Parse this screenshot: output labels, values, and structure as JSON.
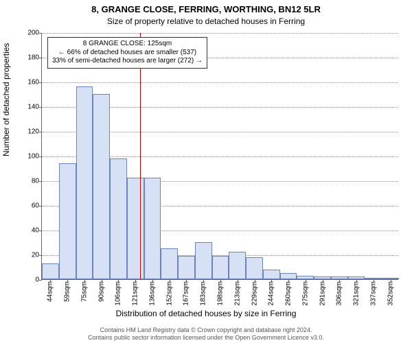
{
  "title": "8, GRANGE CLOSE, FERRING, WORTHING, BN12 5LR",
  "subtitle": "Size of property relative to detached houses in Ferring",
  "ylabel": "Number of detached properties",
  "xlabel": "Distribution of detached houses by size in Ferring",
  "footer_line1": "Contains HM Land Registry data © Crown copyright and database right 2024.",
  "footer_line2": "Contains public sector information licensed under the Open Government Licence v3.0.",
  "chart": {
    "type": "histogram",
    "ylim": [
      0,
      200
    ],
    "ytick_step": 20,
    "yticks": [
      0,
      20,
      40,
      60,
      80,
      100,
      120,
      140,
      160,
      180,
      200
    ],
    "x_categories": [
      "44sqm",
      "59sqm",
      "75sqm",
      "90sqm",
      "106sqm",
      "121sqm",
      "136sqm",
      "152sqm",
      "167sqm",
      "183sqm",
      "198sqm",
      "213sqm",
      "229sqm",
      "244sqm",
      "260sqm",
      "275sqm",
      "291sqm",
      "306sqm",
      "321sqm",
      "337sqm",
      "352sqm"
    ],
    "values": [
      13,
      94,
      156,
      150,
      98,
      82,
      82,
      25,
      19,
      30,
      19,
      22,
      18,
      8,
      5,
      3,
      2,
      2,
      2,
      1,
      1
    ],
    "bar_fill": "#d6e1f5",
    "bar_border": "#6b84bf",
    "bar_border_width": 1,
    "background_color": "#ffffff",
    "grid_color": "#888888",
    "axis_color": "#666666",
    "label_fontsize": 12,
    "tick_fontsize": 10,
    "title_fontsize": 13,
    "reference_line": {
      "value_sqm": 125,
      "color": "#cc0000",
      "width": 1
    },
    "annotation": {
      "lines": [
        "8 GRANGE CLOSE: 125sqm",
        "← 66% of detached houses are smaller (537)",
        "33% of semi-detached houses are larger (272) →"
      ],
      "border_color": "#333333",
      "background": "#ffffff",
      "fontsize": 10
    }
  }
}
